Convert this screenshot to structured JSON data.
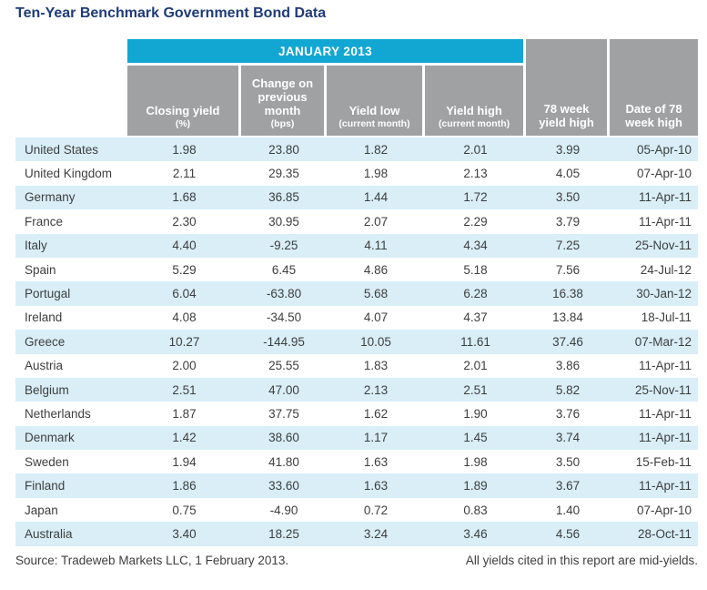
{
  "title": "Ten-Year Benchmark Government Bond Data",
  "colors": {
    "accent_cyan": "#12a7d3",
    "header_gray": "#a0a1a3",
    "row_light_blue": "#d9eef7",
    "title_navy": "#1f3c78",
    "body_text": "#3e3e3e"
  },
  "table": {
    "group_header": "JANUARY 2013",
    "columns": [
      {
        "label": "Closing yield",
        "sub": "(%)"
      },
      {
        "label": "Change on\nprevious\nmonth",
        "sub": "(bps)"
      },
      {
        "label": "Yield low",
        "sub": "(current month)"
      },
      {
        "label": "Yield high",
        "sub": "(current month)"
      },
      {
        "label": "78 week\nyield high",
        "sub": ""
      },
      {
        "label": "Date of 78\nweek high",
        "sub": ""
      }
    ],
    "rows": [
      [
        "United States",
        "1.98",
        "23.80",
        "1.82",
        "2.01",
        "3.99",
        "05-Apr-10"
      ],
      [
        "United Kingdom",
        "2.11",
        "29.35",
        "1.98",
        "2.13",
        "4.05",
        "07-Apr-10"
      ],
      [
        "Germany",
        "1.68",
        "36.85",
        "1.44",
        "1.72",
        "3.50",
        "11-Apr-11"
      ],
      [
        "France",
        "2.30",
        "30.95",
        "2.07",
        "2.29",
        "3.79",
        "11-Apr-11"
      ],
      [
        "Italy",
        "4.40",
        "-9.25",
        "4.11",
        "4.34",
        "7.25",
        "25-Nov-11"
      ],
      [
        "Spain",
        "5.29",
        "6.45",
        "4.86",
        "5.18",
        "7.56",
        "24-Jul-12"
      ],
      [
        "Portugal",
        "6.04",
        "-63.80",
        "5.68",
        "6.28",
        "16.38",
        "30-Jan-12"
      ],
      [
        "Ireland",
        "4.08",
        "-34.50",
        "4.07",
        "4.37",
        "13.84",
        "18-Jul-11"
      ],
      [
        "Greece",
        "10.27",
        "-144.95",
        "10.05",
        "11.61",
        "37.46",
        "07-Mar-12"
      ],
      [
        "Austria",
        "2.00",
        "25.55",
        "1.83",
        "2.01",
        "3.86",
        "11-Apr-11"
      ],
      [
        "Belgium",
        "2.51",
        "47.00",
        "2.13",
        "2.51",
        "5.82",
        "25-Nov-11"
      ],
      [
        "Netherlands",
        "1.87",
        "37.75",
        "1.62",
        "1.90",
        "3.76",
        "11-Apr-11"
      ],
      [
        "Denmark",
        "1.42",
        "38.60",
        "1.17",
        "1.45",
        "3.74",
        "11-Apr-11"
      ],
      [
        "Sweden",
        "1.94",
        "41.80",
        "1.63",
        "1.98",
        "3.50",
        "15-Feb-11"
      ],
      [
        "Finland",
        "1.86",
        "33.60",
        "1.63",
        "1.89",
        "3.67",
        "11-Apr-11"
      ],
      [
        "Japan",
        "0.75",
        "-4.90",
        "0.72",
        "0.83",
        "1.40",
        "07-Apr-10"
      ],
      [
        "Australia",
        "3.40",
        "18.25",
        "3.24",
        "3.46",
        "4.56",
        "28-Oct-11"
      ]
    ]
  },
  "footer": {
    "source": "Source: Tradeweb Markets LLC, 1 February 2013.",
    "note": "All yields cited in this report are mid-yields."
  }
}
